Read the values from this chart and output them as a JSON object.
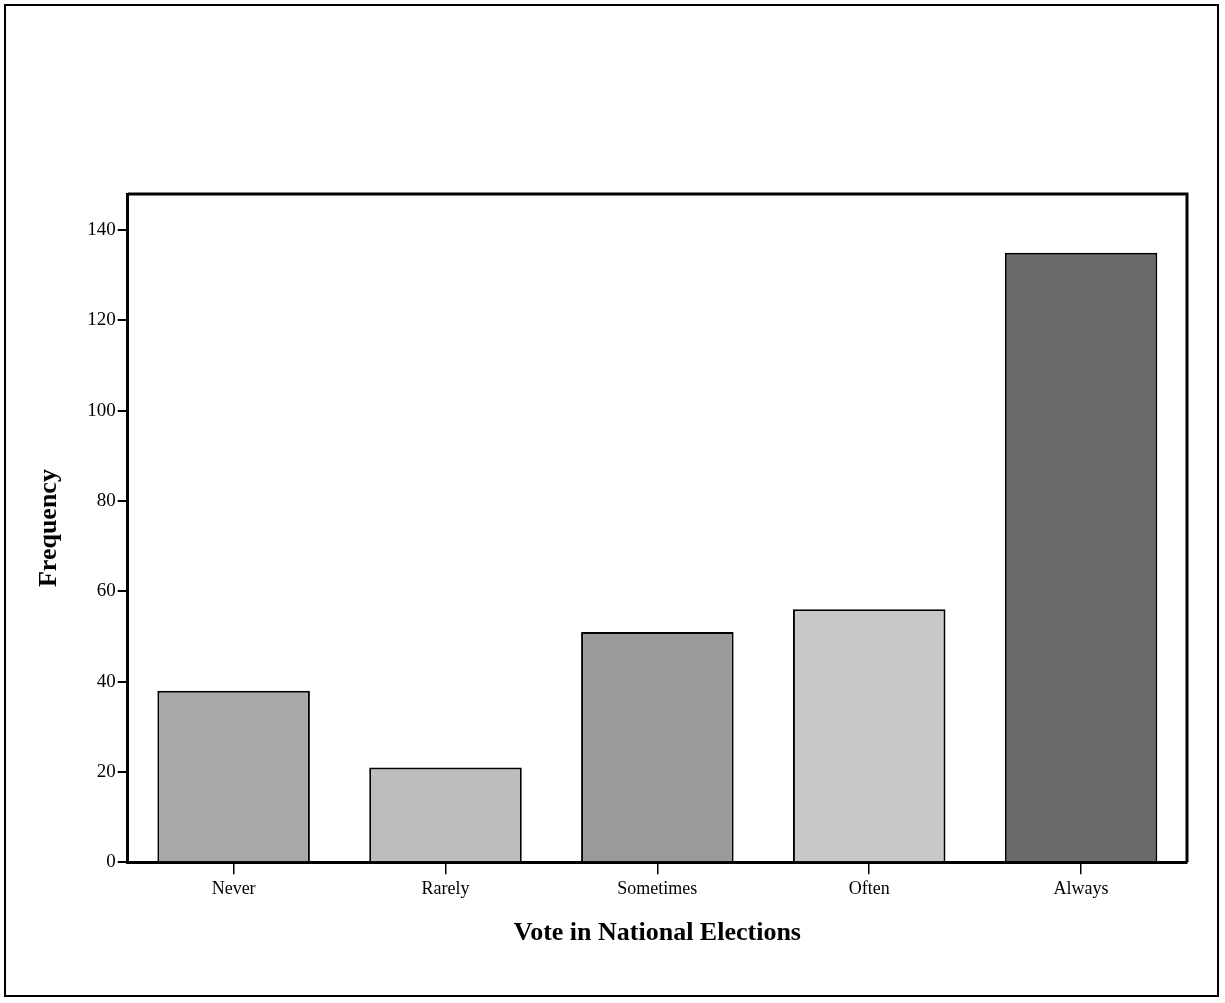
{
  "chart_data": {
    "type": "bar",
    "xlabel": "Vote in National Elections",
    "ylabel": "Frequency",
    "categories": [
      "Never",
      "Rarely",
      "Sometimes",
      "Often",
      "Always"
    ],
    "values": [
      38,
      21,
      51,
      56,
      135
    ],
    "colors": [
      "#a8a8a8",
      "#bdbdbd",
      "#9a9a9a",
      "#c8c8c8",
      "#6a6a6a"
    ],
    "ylim": [
      0,
      148
    ],
    "yticks": [
      0,
      20,
      40,
      60,
      80,
      100,
      120,
      140
    ],
    "grid": false
  }
}
